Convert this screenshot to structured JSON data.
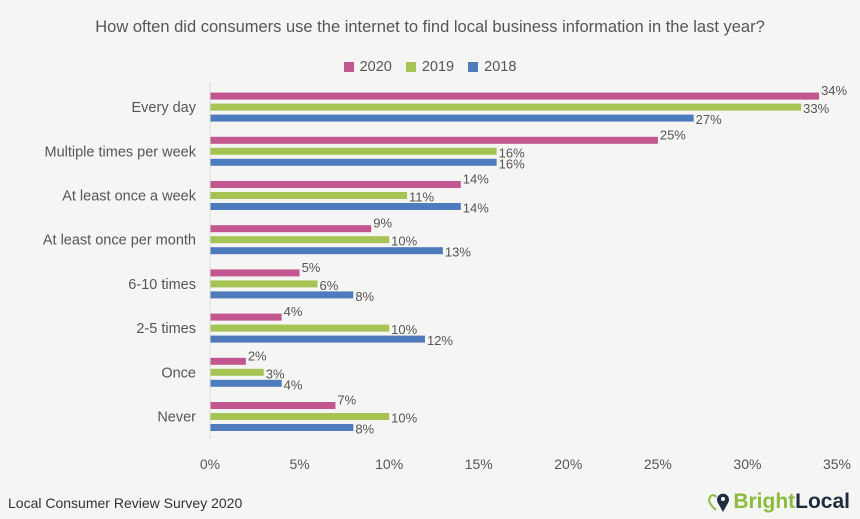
{
  "chart_data": {
    "type": "bar",
    "orientation": "horizontal",
    "title": "How often did consumers use the internet to find local business information in the last year?",
    "categories": [
      "Every day",
      "Multiple times per week",
      "At least once a week",
      "At least once per month",
      "6-10 times",
      "2-5 times",
      "Once",
      "Never"
    ],
    "series": [
      {
        "name": "2020",
        "color": "#c2568f",
        "values": [
          34,
          25,
          14,
          9,
          5,
          4,
          2,
          7
        ]
      },
      {
        "name": "2019",
        "color": "#a5c454",
        "values": [
          33,
          16,
          11,
          10,
          6,
          10,
          3,
          10
        ]
      },
      {
        "name": "2018",
        "color": "#4e7bbd",
        "values": [
          27,
          16,
          14,
          13,
          8,
          12,
          4,
          8
        ]
      }
    ],
    "xlim": [
      0,
      35
    ],
    "xticks": [
      "0%",
      "5%",
      "10%",
      "15%",
      "20%",
      "25%",
      "30%",
      "35%"
    ],
    "value_suffix": "%",
    "grid": false,
    "legend_position": "top"
  },
  "footer": {
    "source": "Local Consumer Review Survey 2020"
  },
  "logo": {
    "text_a": "Bright",
    "text_b": "Local",
    "color_a": "#8dbb3f",
    "color_b": "#1f2c3d"
  }
}
